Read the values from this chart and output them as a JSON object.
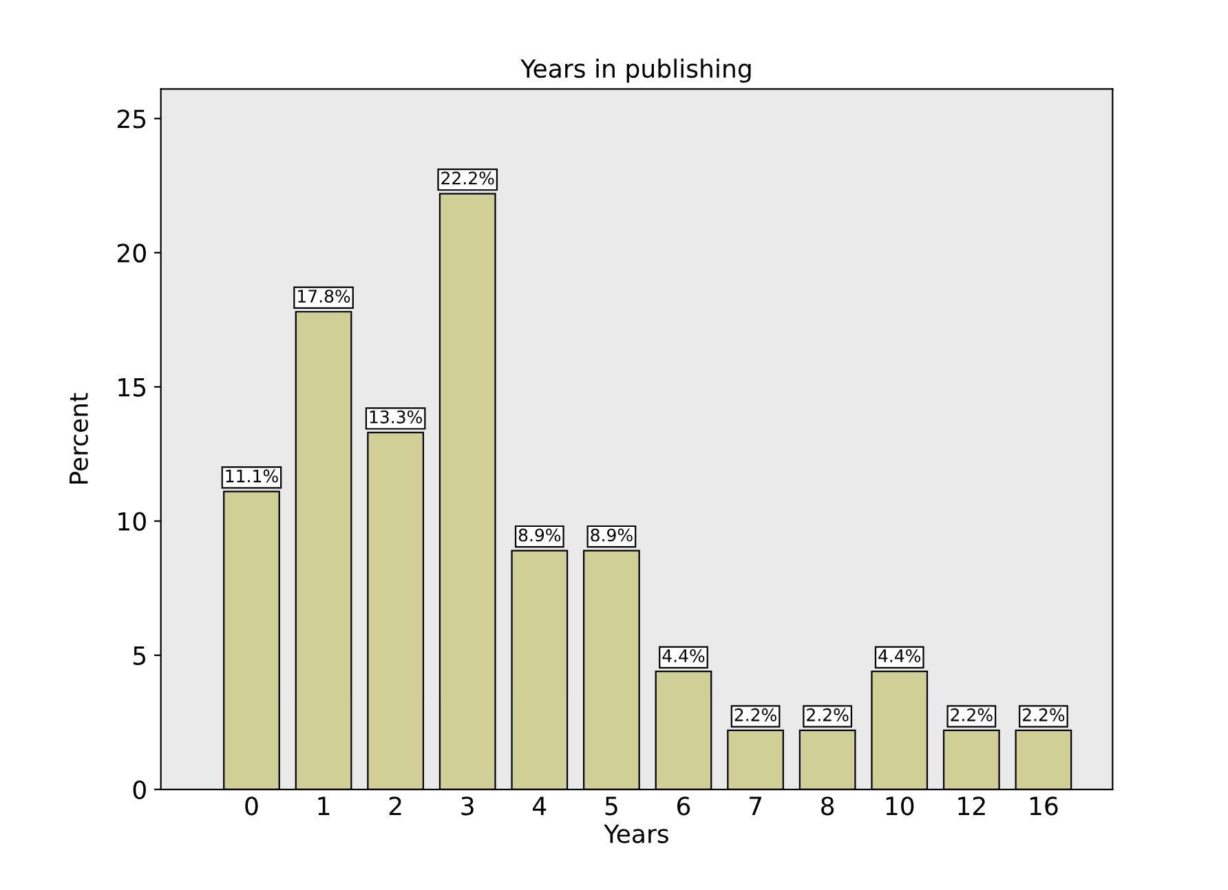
{
  "chart_data": {
    "type": "bar",
    "title": "Years in publishing",
    "xlabel": "Years",
    "ylabel": "Percent",
    "categories": [
      "0",
      "1",
      "2",
      "3",
      "4",
      "5",
      "6",
      "7",
      "8",
      "10",
      "12",
      "16"
    ],
    "values": [
      11.1,
      17.8,
      13.3,
      22.2,
      8.9,
      8.9,
      4.4,
      2.2,
      2.2,
      4.4,
      2.2,
      2.2
    ],
    "value_labels": [
      "11.1%",
      "17.8%",
      "13.3%",
      "22.2%",
      "8.9%",
      "8.9%",
      "4.4%",
      "2.2%",
      "2.2%",
      "4.4%",
      "2.2%",
      "2.2%"
    ],
    "color": "#d0cf96",
    "ylim": [
      0,
      26.1
    ],
    "yticks": [
      0,
      5,
      10,
      15,
      20,
      25
    ],
    "grid": false
  }
}
